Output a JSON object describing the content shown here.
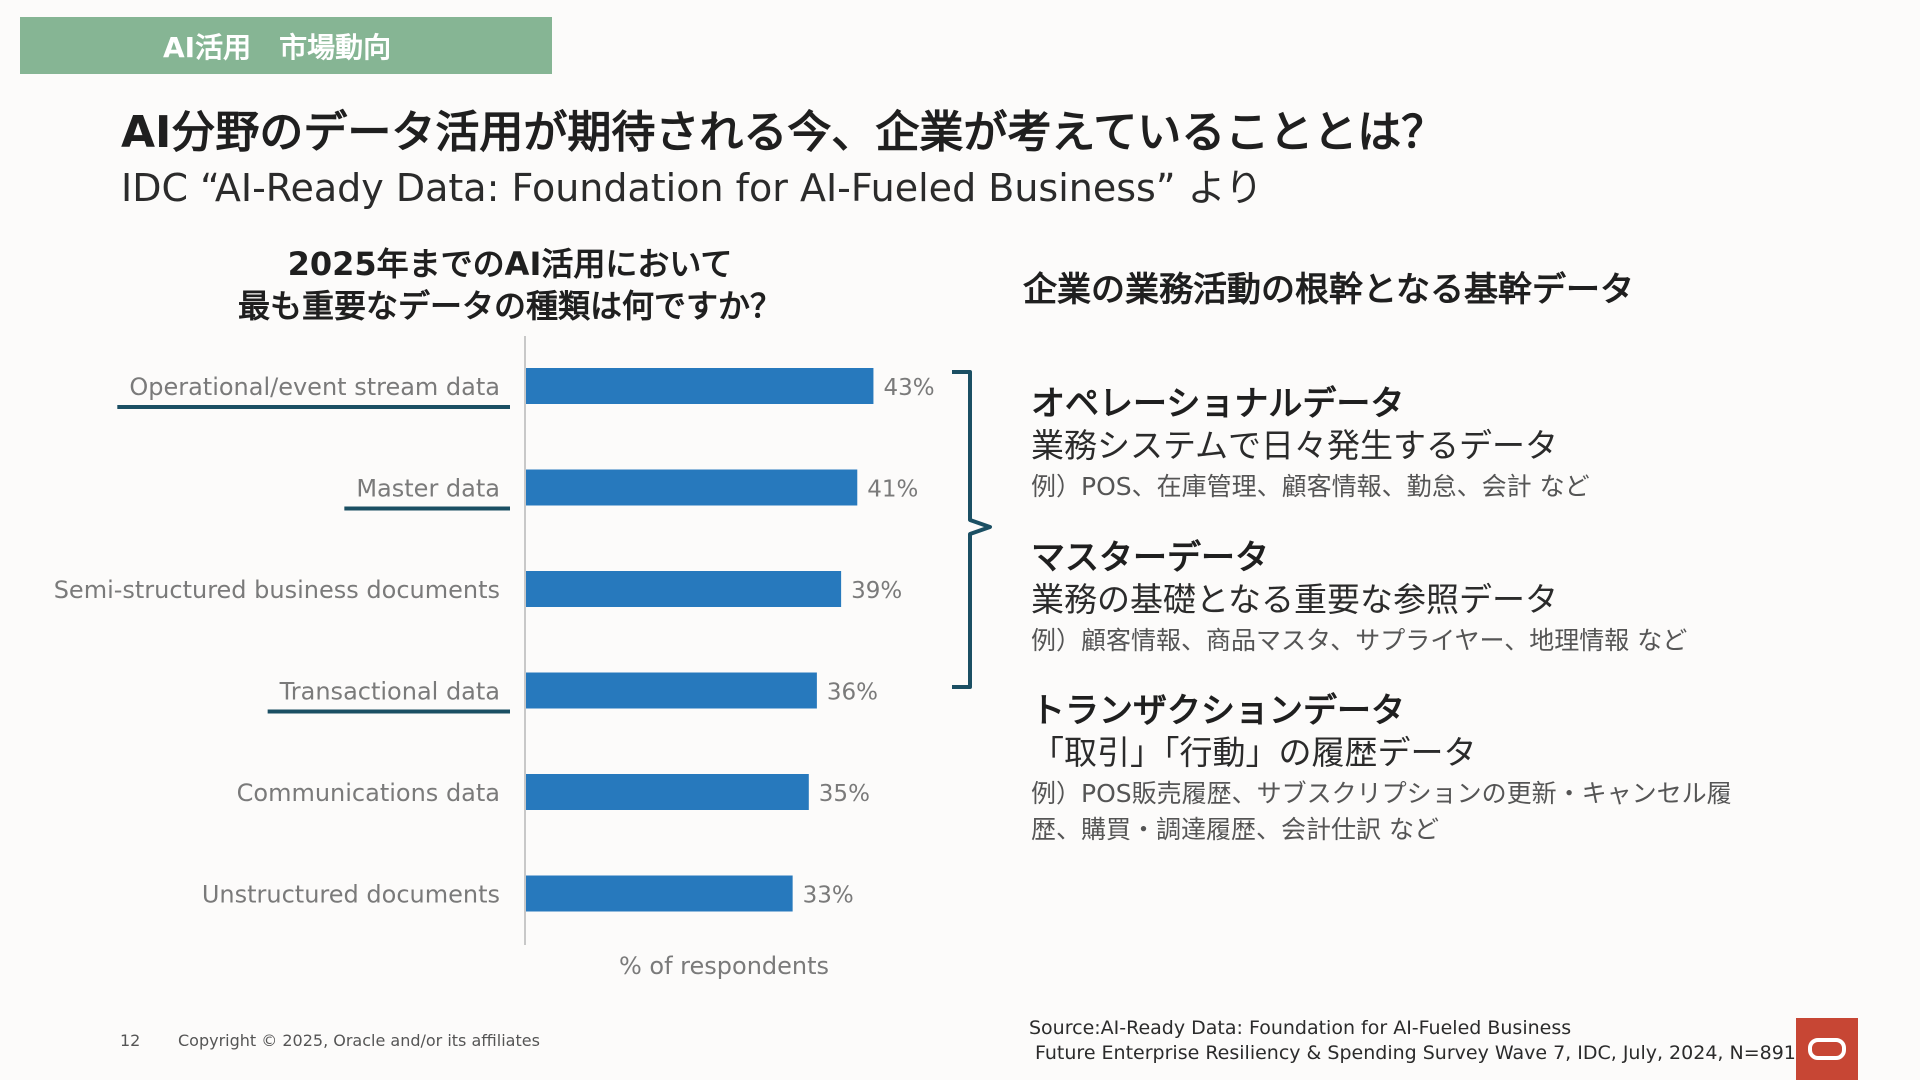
{
  "section_tag": "AI活用　市場動向",
  "title": "AI分野のデータ活用が期待される今、企業が考えていることとは？",
  "subtitle": "IDC “AI-Ready Data: Foundation for AI-Fueled Business” より",
  "chart_title_lines": [
    "2025年までのAI活用において",
    "最も重要なデータの種類は何ですか？"
  ],
  "chart_data": {
    "type": "bar",
    "orientation": "horizontal",
    "categories": [
      "Operational/event stream data",
      "Master data",
      "Semi-structured business documents",
      "Transactional data",
      "Communications data",
      "Unstructured documents"
    ],
    "values": [
      43,
      41,
      39,
      36,
      35,
      33
    ],
    "value_labels": [
      "43%",
      "41%",
      "39%",
      "36%",
      "35%",
      "33%"
    ],
    "underlined": [
      true,
      true,
      false,
      true,
      false,
      false
    ],
    "xlabel": "% of respondents",
    "bar_color": "#2779bd",
    "underline_color": "#1b4f63"
  },
  "right_heading": "企業の業務活動の根幹となる基幹データ",
  "data_types": [
    {
      "name": "オペレーショナルデータ",
      "desc": "業務システムで日々発生するデータ",
      "example": "例）POS、在庫管理、顧客情報、勤怠、会計 など"
    },
    {
      "name": "マスターデータ",
      "desc": "業務の基礎となる重要な参照データ",
      "example": "例）顧客情報、商品マスタ、サプライヤー、地理情報 など"
    },
    {
      "name": "トランザクションデータ",
      "desc": "「取引」「行動」の履歴データ",
      "example": "例）POS販売履歴、サブスクリプションの更新・キャンセル履歴、購買・調達履歴、会計仕訳 など"
    }
  ],
  "footer": {
    "page_number": "12",
    "copyright": "Copyright © 2025, Oracle and/or its affiliates"
  },
  "source_lines": [
    "Source:AI-Ready Data: Foundation for AI-Fueled Business",
    "Future Enterprise Resiliency & Spending Survey Wave 7, IDC, July, 2024, N=891"
  ],
  "colors": {
    "tag_bg": "#86b594",
    "bracket": "#1b4f63",
    "logo_bg": "#c74634"
  },
  "logo_icon": "oracle-logo-icon"
}
